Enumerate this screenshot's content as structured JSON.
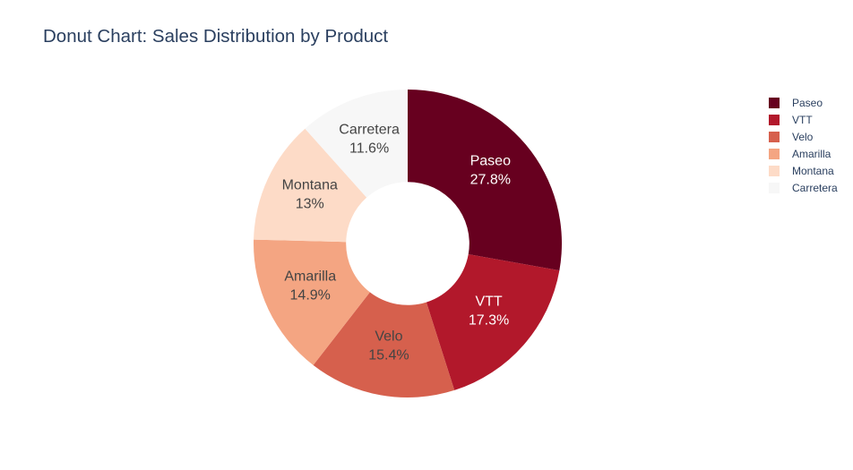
{
  "chart_data": {
    "type": "pie",
    "title": "Donut Chart: Sales Distribution by Product",
    "hole": 0.4,
    "labels": [
      "Paseo",
      "VTT",
      "Velo",
      "Amarilla",
      "Montana",
      "Carretera"
    ],
    "percent_labels": [
      "27.8%",
      "17.3%",
      "15.4%",
      "14.9%",
      "13%",
      "11.6%"
    ],
    "values": [
      27.8,
      17.3,
      15.4,
      14.9,
      13.0,
      11.6
    ],
    "colors": [
      "#67001f",
      "#b2182b",
      "#d6604d",
      "#f4a582",
      "#fddbc7",
      "#f7f7f7"
    ],
    "label_colors": [
      "#ffffff",
      "#ffffff",
      "#444444",
      "#444444",
      "#444444",
      "#444444"
    ],
    "legend": {
      "placement": "top-right",
      "items": [
        "Paseo",
        "VTT",
        "Velo",
        "Amarilla",
        "Montana",
        "Carretera"
      ]
    }
  }
}
